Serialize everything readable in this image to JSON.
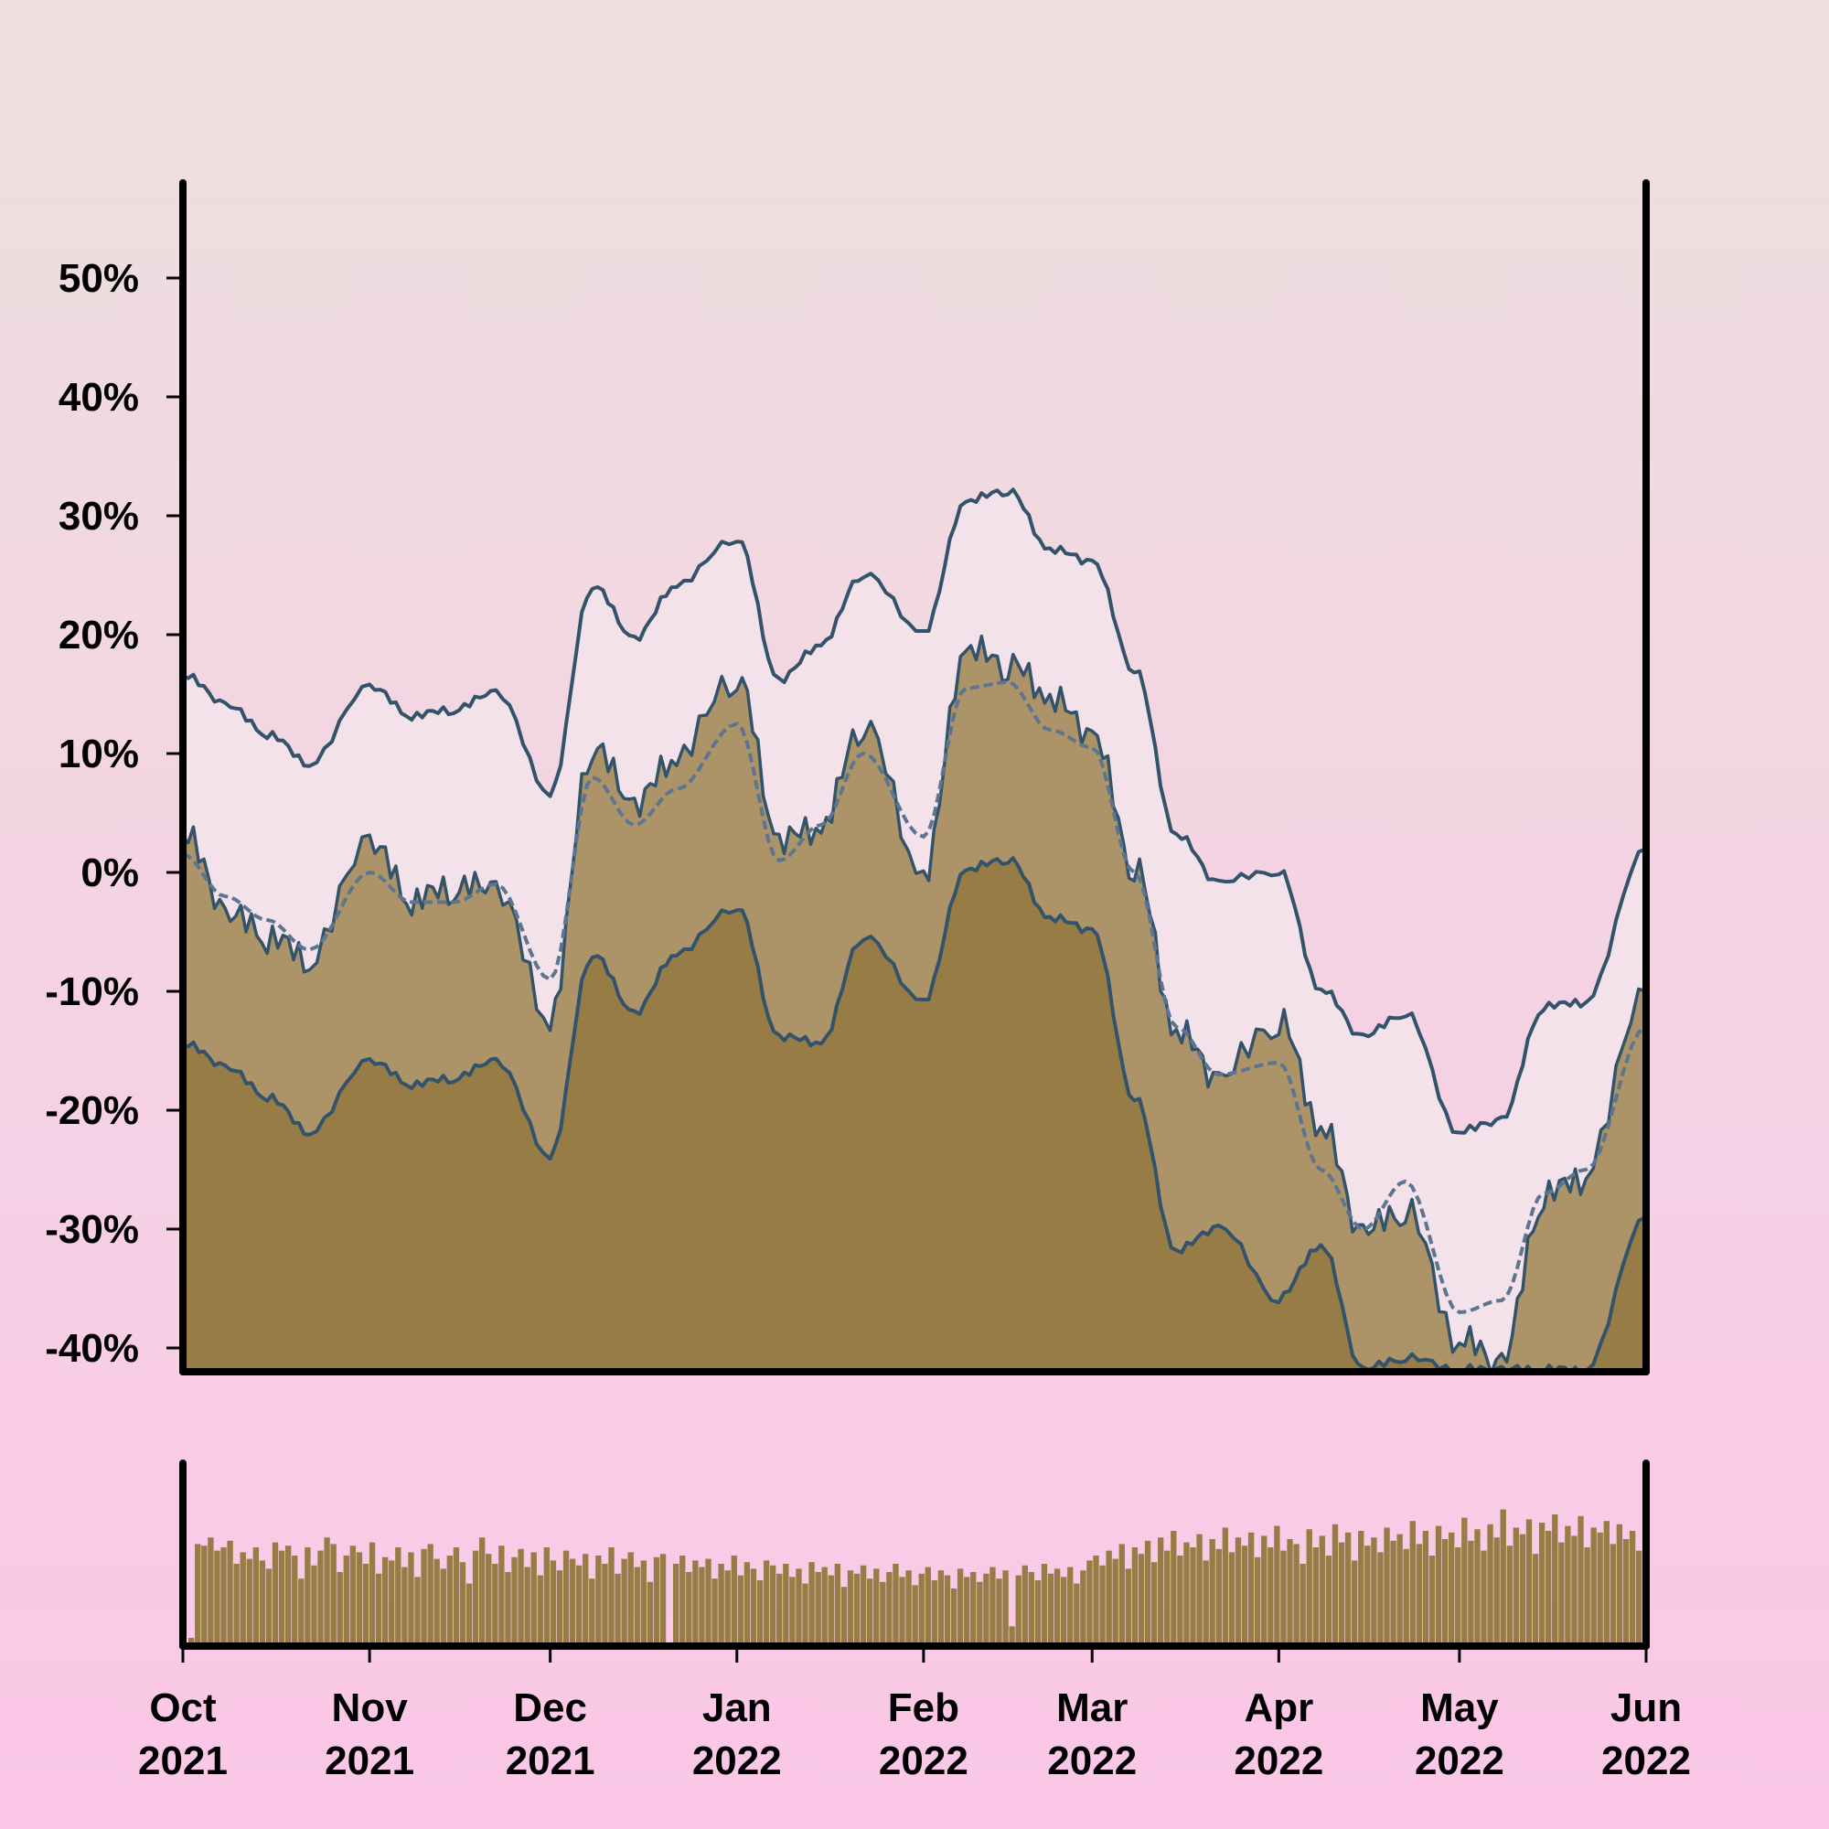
{
  "chart_data": [
    {
      "type": "line",
      "panel": "price-bands",
      "title": "",
      "xlabel": "",
      "ylabel": "",
      "x_range": [
        "2021-10-01",
        "2022-06-01"
      ],
      "ylim": [
        -42,
        58
      ],
      "yticks": [
        -40,
        -30,
        -20,
        -10,
        0,
        10,
        20,
        30,
        40,
        50
      ],
      "ytick_labels": [
        "-40%",
        "-30%",
        "-20%",
        "-10%",
        "0%",
        "10%",
        "20%",
        "30%",
        "40%",
        "50%"
      ],
      "grid": false,
      "legend": "none",
      "x": [
        "2021-10-01",
        "2021-10-08",
        "2021-10-15",
        "2021-10-22",
        "2021-11-01",
        "2021-11-08",
        "2021-11-15",
        "2021-11-22",
        "2021-12-01",
        "2021-12-08",
        "2021-12-15",
        "2021-12-22",
        "2022-01-01",
        "2022-01-08",
        "2022-01-15",
        "2022-01-22",
        "2022-02-01",
        "2022-02-08",
        "2022-02-15",
        "2022-02-22",
        "2022-03-01",
        "2022-03-08",
        "2022-03-15",
        "2022-03-22",
        "2022-04-01",
        "2022-04-08",
        "2022-04-15",
        "2022-04-22",
        "2022-05-01",
        "2022-05-08",
        "2022-05-15",
        "2022-05-22",
        "2022-06-01"
      ],
      "series": [
        {
          "role": "upper-band",
          "values": [
            16.5,
            14,
            11.5,
            9,
            15.5,
            13,
            13.5,
            15,
            6.5,
            24,
            19.5,
            24,
            28,
            16,
            19,
            25,
            20,
            31,
            32,
            27,
            26,
            17,
            3,
            -1,
            0,
            -10,
            -14,
            -12,
            -22,
            -21,
            -11.5,
            -11,
            2
          ]
        },
        {
          "role": "close",
          "values": [
            3,
            -4,
            -6,
            -8,
            2,
            -3,
            -2,
            -2,
            -13,
            10,
            5,
            9,
            16,
            2,
            3,
            12,
            -1,
            18,
            17,
            14,
            11,
            0,
            -14,
            -18,
            -13,
            -22,
            -31,
            -29,
            -40,
            -42,
            -28,
            -26,
            -10
          ]
        },
        {
          "role": "moving-average",
          "style": "dashed",
          "values": [
            1.5,
            -2,
            -4,
            -6.5,
            0,
            -2.5,
            -2.5,
            -1,
            -9,
            8,
            4,
            7,
            12.5,
            1,
            4,
            10,
            3,
            15.5,
            16,
            12,
            10.5,
            0,
            -13,
            -17,
            -16,
            -25,
            -30,
            -26,
            -37,
            -36,
            -27,
            -25,
            -13
          ]
        },
        {
          "role": "lower-band",
          "values": [
            -14.5,
            -16.5,
            -19,
            -22,
            -16,
            -18,
            -17.5,
            -16,
            -24,
            -7,
            -12,
            -7,
            -3,
            -14,
            -14.5,
            -5.5,
            -11,
            0,
            1,
            -4,
            -5,
            -19,
            -32,
            -30,
            -36,
            -31.5,
            -42,
            -41,
            -42,
            -42,
            -42,
            -42,
            -29
          ]
        }
      ]
    },
    {
      "type": "bar",
      "panel": "volume",
      "title": "",
      "xlabel": "",
      "ylabel": "",
      "x_range": [
        "2021-10-01",
        "2022-06-01"
      ],
      "xtick_dates": [
        "2021-10-01",
        "2021-11-01",
        "2021-12-01",
        "2022-01-01",
        "2022-02-01",
        "2022-03-01",
        "2022-04-01",
        "2022-05-01",
        "2022-06-01"
      ],
      "xtick_labels": [
        [
          "Oct",
          "2021"
        ],
        [
          "Nov",
          "2021"
        ],
        [
          "Dec",
          "2021"
        ],
        [
          "Jan",
          "2022"
        ],
        [
          "Feb",
          "2022"
        ],
        [
          "Mar",
          "2022"
        ],
        [
          "Apr",
          "2022"
        ],
        [
          "May",
          "2022"
        ],
        [
          "Jun",
          "2022"
        ]
      ],
      "ylim": [
        0,
        1
      ],
      "monthly_levels": [
        0.62,
        0.58,
        0.55,
        0.48,
        0.44,
        0.58,
        0.65,
        0.7,
        0.68
      ],
      "values": [
        0.05,
        0.62,
        0.61,
        0.66,
        0.58,
        0.6,
        0.64,
        0.5,
        0.57,
        0.53,
        0.6,
        0.52,
        0.47,
        0.63,
        0.58,
        0.61,
        0.55,
        0.41,
        0.6,
        0.49,
        0.58,
        0.66,
        0.62,
        0.45,
        0.55,
        0.61,
        0.57,
        0.5,
        0.63,
        0.44,
        0.54,
        0.52,
        0.6,
        0.48,
        0.57,
        0.42,
        0.59,
        0.62,
        0.53,
        0.47,
        0.55,
        0.6,
        0.51,
        0.38,
        0.58,
        0.66,
        0.56,
        0.5,
        0.61,
        0.45,
        0.54,
        0.59,
        0.48,
        0.57,
        0.43,
        0.6,
        0.52,
        0.46,
        0.58,
        0.53,
        0.49,
        0.56,
        0.41,
        0.55,
        0.5,
        0.6,
        0.44,
        0.53,
        0.57,
        0.48,
        0.52,
        0.39,
        0.54,
        0.56,
        0.02,
        0.5,
        0.55,
        0.45,
        0.52,
        0.48,
        0.53,
        0.41,
        0.5,
        0.46,
        0.55,
        0.43,
        0.51,
        0.47,
        0.4,
        0.52,
        0.49,
        0.44,
        0.5,
        0.42,
        0.47,
        0.38,
        0.51,
        0.45,
        0.48,
        0.43,
        0.5,
        0.36,
        0.46,
        0.44,
        0.49,
        0.41,
        0.47,
        0.39,
        0.45,
        0.5,
        0.42,
        0.46,
        0.37,
        0.44,
        0.48,
        0.4,
        0.46,
        0.43,
        0.35,
        0.47,
        0.42,
        0.45,
        0.39,
        0.44,
        0.48,
        0.41,
        0.46,
        0.12,
        0.43,
        0.49,
        0.45,
        0.4,
        0.5,
        0.44,
        0.47,
        0.42,
        0.48,
        0.38,
        0.46,
        0.52,
        0.55,
        0.49,
        0.58,
        0.53,
        0.62,
        0.47,
        0.6,
        0.56,
        0.64,
        0.51,
        0.66,
        0.58,
        0.7,
        0.55,
        0.63,
        0.6,
        0.68,
        0.52,
        0.65,
        0.59,
        0.72,
        0.57,
        0.66,
        0.61,
        0.69,
        0.54,
        0.67,
        0.6,
        0.73,
        0.58,
        0.65,
        0.62,
        0.5,
        0.71,
        0.6,
        0.67,
        0.55,
        0.74,
        0.63,
        0.69,
        0.52,
        0.7,
        0.61,
        0.66,
        0.57,
        0.72,
        0.64,
        0.68,
        0.59,
        0.76,
        0.62,
        0.7,
        0.55,
        0.73,
        0.65,
        0.69,
        0.6,
        0.78,
        0.64,
        0.71,
        0.58,
        0.74,
        0.66,
        0.83,
        0.61,
        0.72,
        0.68,
        0.77,
        0.56,
        0.75,
        0.7,
        0.8,
        0.63,
        0.73,
        0.67,
        0.79,
        0.6,
        0.72,
        0.69,
        0.76,
        0.62,
        0.74,
        0.65,
        0.7,
        0.58
      ],
      "values_note_omitted": true
    }
  ],
  "colors": {
    "background_top": "#ede0de",
    "background_bottom": "#fbc7e7",
    "band_fill": "#f3e2ea",
    "close_fill": "#ac9468",
    "lower_fill": "#987c46",
    "line": "#33536a",
    "ma_line": "#5d7590",
    "volume_bar": "#987c46",
    "axis": "#000000"
  }
}
